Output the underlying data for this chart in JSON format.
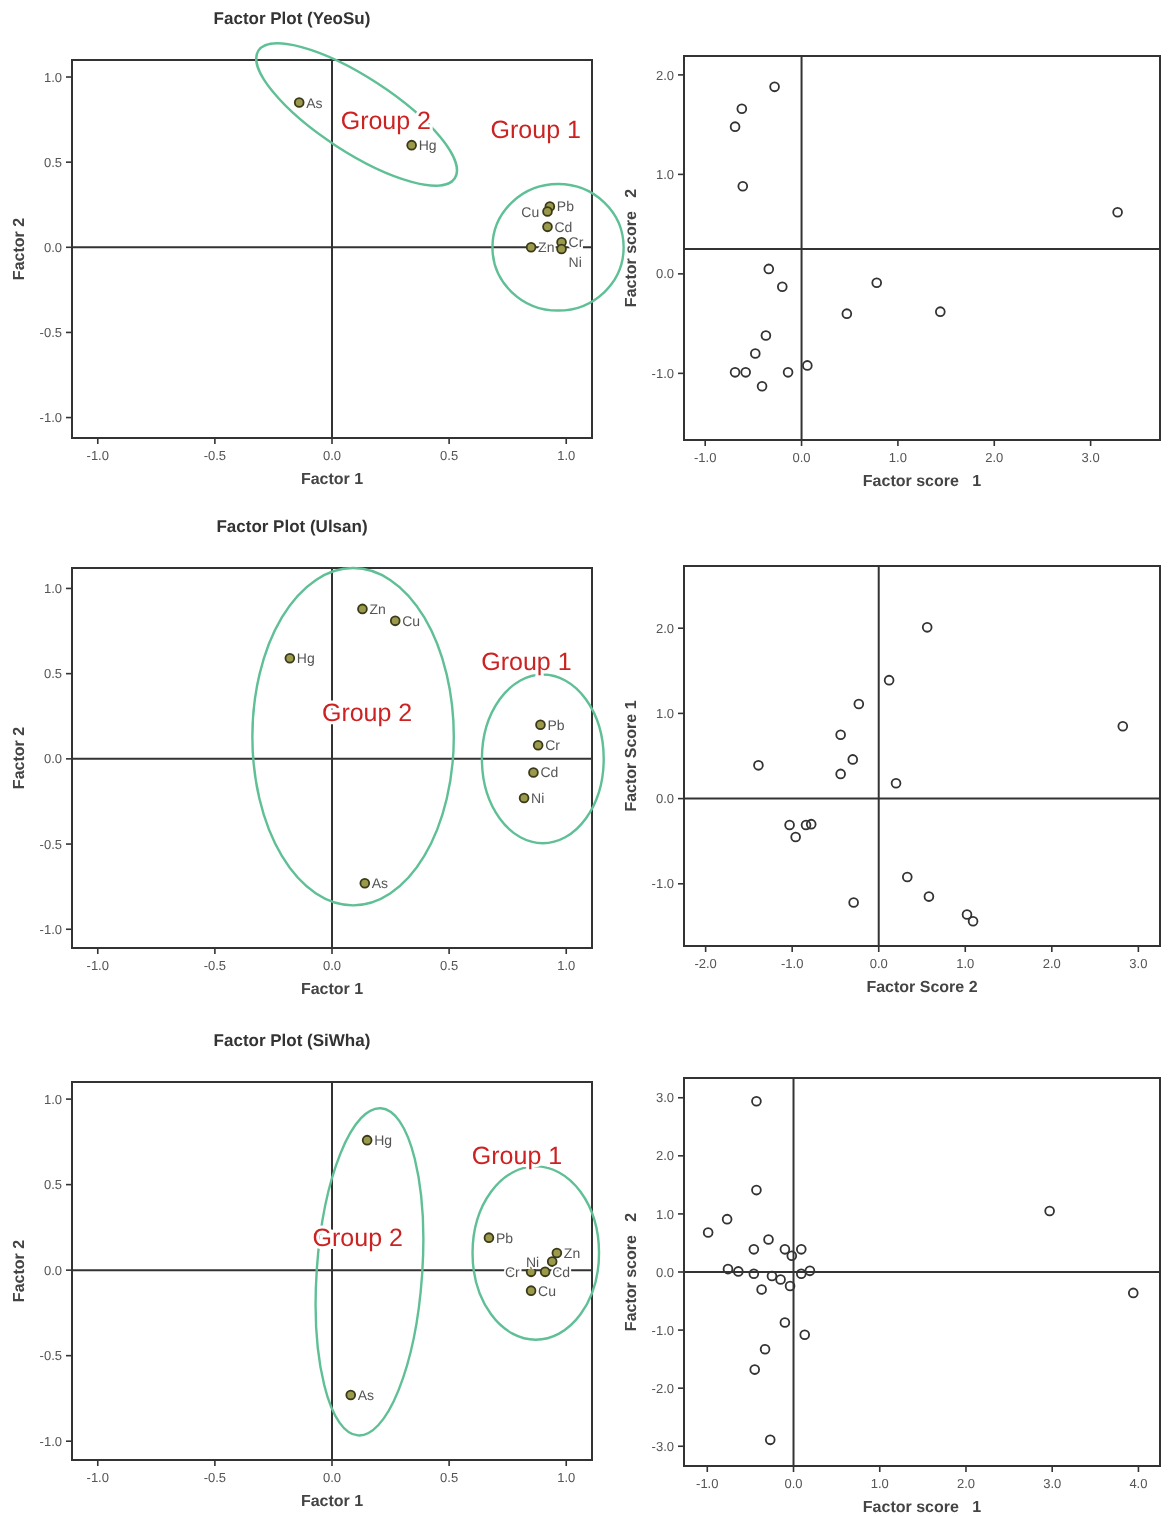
{
  "chart_data": [
    {
      "type": "scatter",
      "title": "Factor Plot (YeoSu)",
      "xlabel": "Factor 1",
      "ylabel": "Factor 2",
      "marker": "circle",
      "xlim": [
        -1.11,
        1.11
      ],
      "ylim": [
        -1.12,
        1.1
      ],
      "xticks": [
        {
          "value": -1,
          "label": "-1.0"
        },
        {
          "value": -0.5,
          "label": "-0.5"
        },
        {
          "value": 0,
          "label": "0.0"
        },
        {
          "value": 0.5,
          "label": "0.5"
        },
        {
          "value": 1,
          "label": "1.0"
        }
      ],
      "yticks": [
        {
          "value": -1,
          "label": "-1.0"
        },
        {
          "value": -0.5,
          "label": "-0.5"
        },
        {
          "value": 0,
          "label": "0.0"
        },
        {
          "value": 0.5,
          "label": "0.5"
        },
        {
          "value": 1,
          "label": "1.0"
        }
      ],
      "ref_lines": [
        {
          "axis": "x",
          "value": 0,
          "color": "#333333"
        },
        {
          "axis": "y",
          "value": 0,
          "color": "#333333"
        }
      ],
      "annotations": [
        "Group 1",
        "Group 2"
      ],
      "series": [
        {
          "color": "#9a9a4a",
          "x": [
            -0.14,
            0.34,
            0.93,
            0.92,
            0.92,
            0.85,
            0.98,
            0.98
          ],
          "values": [
            0.85,
            0.6,
            0.24,
            0.21,
            0.12,
            0.0,
            0.03,
            -0.01
          ],
          "value_labels": [
            "As",
            "Hg",
            "Pb",
            "Cu",
            "Cd",
            "Zn",
            "Cr",
            "Ni"
          ]
        }
      ]
    },
    {
      "type": "scatter",
      "xlabel": "Factor score   1",
      "ylabel": "Factor score   2",
      "marker": "circle",
      "xlim": [
        -1.22,
        3.72
      ],
      "ylim": [
        -1.67,
        2.19
      ],
      "xticks": [
        {
          "value": -1,
          "label": "-1.0"
        },
        {
          "value": 0,
          "label": "0.0"
        },
        {
          "value": 1,
          "label": "1.0"
        },
        {
          "value": 2,
          "label": "2.0"
        },
        {
          "value": 3,
          "label": "3.0"
        }
      ],
      "yticks": [
        {
          "value": -1,
          "label": "-1.0"
        },
        {
          "value": 0,
          "label": "0.0"
        },
        {
          "value": 1,
          "label": "1.0"
        },
        {
          "value": 2,
          "label": "2.0"
        }
      ],
      "ref_lines": [
        {
          "axis": "x",
          "value": 0,
          "color": "#333333"
        },
        {
          "axis": "y",
          "value": 0.25,
          "color": "#333333"
        }
      ],
      "series": [
        {
          "color": "#333333",
          "x": [
            -0.28,
            -0.62,
            -0.69,
            -0.61,
            3.28,
            -0.34,
            -0.2,
            0.78,
            0.47,
            1.44,
            -0.37,
            -0.48,
            -0.69,
            -0.58,
            -0.41,
            -0.14,
            0.06
          ],
          "values": [
            1.88,
            1.66,
            1.48,
            0.88,
            0.62,
            0.05,
            -0.13,
            -0.09,
            -0.4,
            -0.38,
            -0.62,
            -0.8,
            -0.99,
            -0.99,
            -1.13,
            -0.99,
            -0.92
          ]
        }
      ]
    },
    {
      "type": "scatter",
      "title": "Factor Plot (Ulsan)",
      "xlabel": "Factor 1",
      "ylabel": "Factor 2",
      "marker": "circle",
      "xlim": [
        -1.11,
        1.11
      ],
      "ylim": [
        -1.11,
        1.12
      ],
      "xticks": [
        {
          "value": -1,
          "label": "-1.0"
        },
        {
          "value": -0.5,
          "label": "-0.5"
        },
        {
          "value": 0,
          "label": "0.0"
        },
        {
          "value": 0.5,
          "label": "0.5"
        },
        {
          "value": 1,
          "label": "1.0"
        }
      ],
      "yticks": [
        {
          "value": -1,
          "label": "-1.0"
        },
        {
          "value": -0.5,
          "label": "-0.5"
        },
        {
          "value": 0,
          "label": "0.0"
        },
        {
          "value": 0.5,
          "label": "0.5"
        },
        {
          "value": 1,
          "label": "1.0"
        }
      ],
      "ref_lines": [
        {
          "axis": "x",
          "value": 0,
          "color": "#333333"
        },
        {
          "axis": "y",
          "value": 0,
          "color": "#333333"
        }
      ],
      "annotations": [
        "Group 1",
        "Group 2"
      ],
      "series": [
        {
          "color": "#9a9a4a",
          "x": [
            0.13,
            0.27,
            -0.18,
            0.89,
            0.88,
            0.86,
            0.82,
            0.14
          ],
          "values": [
            0.88,
            0.81,
            0.59,
            0.2,
            0.08,
            -0.08,
            -0.23,
            -0.73
          ],
          "value_labels": [
            "Zn",
            "Cu",
            "Hg",
            "Pb",
            "Cr",
            "Cd",
            "Ni",
            "As"
          ]
        }
      ]
    },
    {
      "type": "scatter",
      "xlabel": "Factor Score 2",
      "ylabel": "Factor Score 1",
      "marker": "circle",
      "xlim": [
        -2.25,
        3.25
      ],
      "ylim": [
        -1.73,
        2.73
      ],
      "xticks": [
        {
          "value": -2,
          "label": "-2.0"
        },
        {
          "value": -1,
          "label": "-1.0"
        },
        {
          "value": 0,
          "label": "0.0"
        },
        {
          "value": 1,
          "label": "1.0"
        },
        {
          "value": 2,
          "label": "2.0"
        },
        {
          "value": 3,
          "label": "3.0"
        }
      ],
      "yticks": [
        {
          "value": -1,
          "label": "-1.0"
        },
        {
          "value": 0,
          "label": "0.0"
        },
        {
          "value": 1,
          "label": "1.0"
        },
        {
          "value": 2,
          "label": "2.0"
        }
      ],
      "ref_lines": [
        {
          "axis": "x",
          "value": 0,
          "color": "#333333"
        },
        {
          "axis": "y",
          "value": 0,
          "color": "#333333"
        }
      ],
      "series": [
        {
          "color": "#333333",
          "x": [
            0.56,
            0.12,
            -0.23,
            -0.44,
            -0.3,
            -0.44,
            -1.39,
            0.2,
            2.82,
            -1.03,
            -0.84,
            -0.78,
            -0.96,
            0.33,
            0.58,
            -0.29,
            1.02,
            1.09
          ],
          "values": [
            2.01,
            1.39,
            1.11,
            0.75,
            0.46,
            0.29,
            0.39,
            0.18,
            0.85,
            -0.31,
            -0.31,
            -0.3,
            -0.45,
            -0.92,
            -1.15,
            -1.22,
            -1.36,
            -1.44
          ]
        }
      ]
    },
    {
      "type": "scatter",
      "title": "Factor Plot (SiWha)",
      "xlabel": "Factor 1",
      "ylabel": "Factor 2",
      "marker": "circle",
      "xlim": [
        -1.11,
        1.11
      ],
      "ylim": [
        -1.11,
        1.1
      ],
      "xticks": [
        {
          "value": -1,
          "label": "-1.0"
        },
        {
          "value": -0.5,
          "label": "-0.5"
        },
        {
          "value": 0,
          "label": "0.0"
        },
        {
          "value": 0.5,
          "label": "0.5"
        },
        {
          "value": 1,
          "label": "1.0"
        }
      ],
      "yticks": [
        {
          "value": -1,
          "label": "-1.0"
        },
        {
          "value": -0.5,
          "label": "-0.5"
        },
        {
          "value": 0,
          "label": "0.0"
        },
        {
          "value": 0.5,
          "label": "0.5"
        },
        {
          "value": 1,
          "label": "1.0"
        }
      ],
      "ref_lines": [
        {
          "axis": "x",
          "value": 0,
          "color": "#333333"
        },
        {
          "axis": "y",
          "value": 0,
          "color": "#333333"
        }
      ],
      "annotations": [
        "Group 1",
        "Group 2"
      ],
      "series": [
        {
          "color": "#9a9a4a",
          "x": [
            0.15,
            0.67,
            0.96,
            0.94,
            0.85,
            0.91,
            0.85,
            0.08
          ],
          "values": [
            0.76,
            0.19,
            0.1,
            0.05,
            -0.01,
            -0.01,
            -0.12,
            -0.73
          ],
          "value_labels": [
            "Hg",
            "Pb",
            "Zn",
            "Ni",
            "Cr",
            "Cd",
            "Cu",
            "As"
          ]
        }
      ]
    },
    {
      "type": "scatter",
      "xlabel": "Factor score   1",
      "ylabel": "Factor score   2",
      "marker": "circle",
      "xlim": [
        -1.27,
        4.25
      ],
      "ylim": [
        -3.34,
        3.34
      ],
      "xticks": [
        {
          "value": -1,
          "label": "-1.0"
        },
        {
          "value": 0,
          "label": "0.0"
        },
        {
          "value": 1,
          "label": "1.0"
        },
        {
          "value": 2,
          "label": "2.0"
        },
        {
          "value": 3,
          "label": "3.0"
        },
        {
          "value": 4,
          "label": "4.0"
        }
      ],
      "yticks": [
        {
          "value": -3,
          "label": "-3.0"
        },
        {
          "value": -2,
          "label": "-2.0"
        },
        {
          "value": -1,
          "label": "-1.0"
        },
        {
          "value": 0,
          "label": "0.0"
        },
        {
          "value": 1,
          "label": "1.0"
        },
        {
          "value": 2,
          "label": "2.0"
        },
        {
          "value": 3,
          "label": "3.0"
        }
      ],
      "ref_lines": [
        {
          "axis": "x",
          "value": 0,
          "color": "#333333"
        },
        {
          "axis": "y",
          "value": 0,
          "color": "#333333"
        }
      ],
      "series": [
        {
          "color": "#333333",
          "x": [
            -0.43,
            -0.43,
            -0.77,
            -0.99,
            -0.46,
            -0.29,
            -0.1,
            2.97,
            3.94,
            -0.76,
            -0.64,
            -0.46,
            -0.25,
            -0.15,
            -0.04,
            0.09,
            0.19,
            -0.02,
            0.09,
            -0.37,
            -0.1,
            0.13,
            -0.33,
            -0.45,
            -0.27
          ],
          "values": [
            2.94,
            1.41,
            0.91,
            0.68,
            0.39,
            0.56,
            0.39,
            1.05,
            -0.36,
            0.05,
            0.01,
            -0.03,
            -0.07,
            -0.13,
            -0.24,
            -0.03,
            0.02,
            0.28,
            0.39,
            -0.3,
            -0.87,
            -1.08,
            -1.33,
            -1.68,
            -2.89
          ]
        }
      ]
    }
  ]
}
